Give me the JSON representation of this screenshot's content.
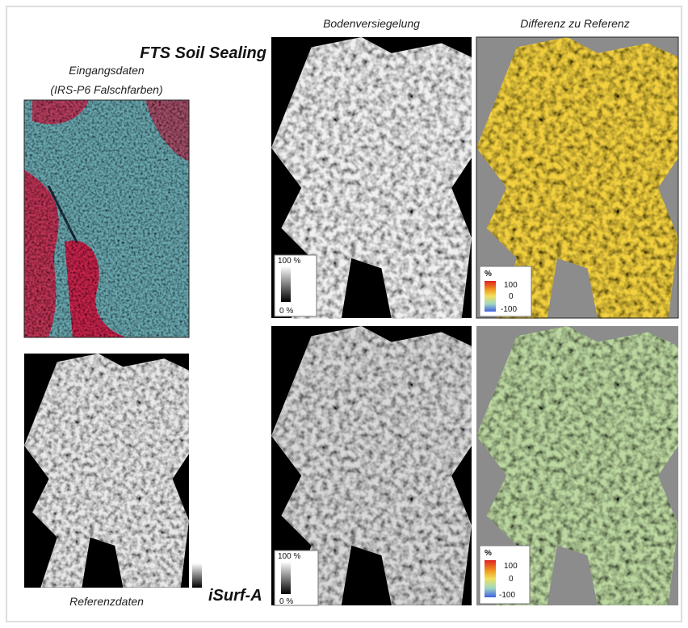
{
  "input": {
    "title": "Eingangsdaten",
    "subtitle": "(IRS-P6 Falschfarben)"
  },
  "reference": {
    "caption": "Referenzdaten"
  },
  "columns": {
    "sealing": "Bodenversiegelung",
    "difference": "Differenz zu Referenz"
  },
  "rows": {
    "fts": "FTS Soil Sealing",
    "isurf": "iSurf-A"
  },
  "legends": {
    "sealing": {
      "max": "100 %",
      "min": "0 %"
    },
    "difference": {
      "unit": "%",
      "max": "100",
      "mid": "0",
      "min": "-100"
    }
  }
}
